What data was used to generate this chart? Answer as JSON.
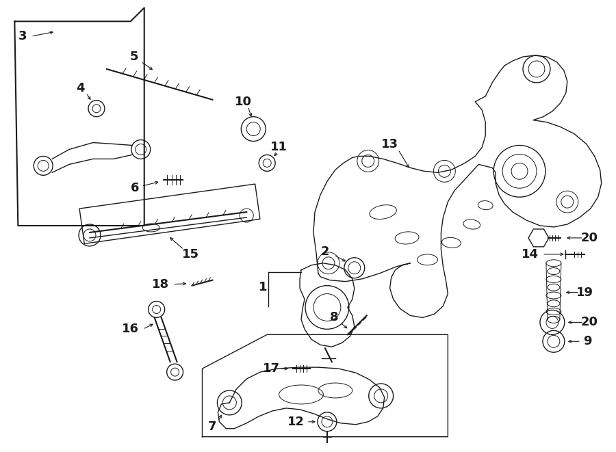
{
  "bg_color": "#ffffff",
  "line_color": "#1a1a1a",
  "fig_width": 9.0,
  "fig_height": 6.61,
  "dpi": 100,
  "font_size": 13,
  "font_size_small": 11
}
